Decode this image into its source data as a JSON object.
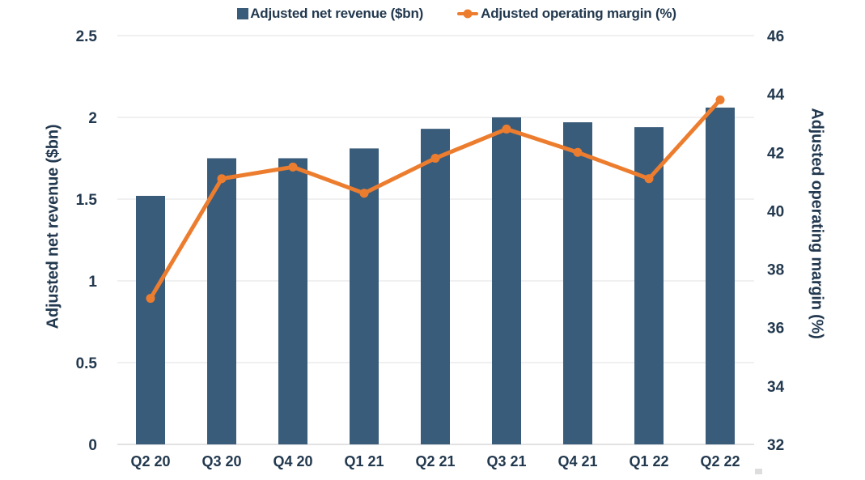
{
  "chart_data": {
    "type": "combo-bar-line",
    "title": "",
    "legend_position": "top-center",
    "grid": "horizontal gridlines at left-axis ticks",
    "categories": [
      "Q2 20",
      "Q3 20",
      "Q4 20",
      "Q1 21",
      "Q2 21",
      "Q3 21",
      "Q4 21",
      "Q1 22",
      "Q2 22"
    ],
    "series": [
      {
        "name": "Adjusted net revenue ($bn)",
        "type": "bar",
        "axis": "left",
        "color": "#3A5C7B",
        "values": [
          1.52,
          1.75,
          1.75,
          1.81,
          1.93,
          2.0,
          1.97,
          1.94,
          2.06
        ]
      },
      {
        "name": "Adjusted operating margin (%)",
        "type": "line",
        "axis": "right",
        "color": "#ED7D2E",
        "values": [
          37.0,
          41.1,
          41.5,
          40.6,
          41.8,
          42.8,
          42.0,
          41.1,
          43.8
        ]
      }
    ],
    "y_left": {
      "title": "Adjusted net revenue ($bn)",
      "min": 0,
      "max": 2.5,
      "ticks": [
        2.5,
        2,
        1.5,
        1,
        0.5,
        0
      ],
      "tick_labels": [
        "2.5",
        "2",
        "1.5",
        "1",
        "0.5",
        "0"
      ]
    },
    "y_right": {
      "title": "Adjusted operating margin (%)",
      "min": 32,
      "max": 46,
      "ticks": [
        46,
        44,
        42,
        40,
        38,
        36,
        34,
        32
      ],
      "tick_labels": [
        "46",
        "44",
        "42",
        "40",
        "38",
        "36",
        "34",
        "32"
      ]
    }
  },
  "colors": {
    "bar": "#3A5C7B",
    "line": "#ED7D2E",
    "text": "#22384E",
    "grid": "#ECECEC",
    "baseline": "#D9D9D9",
    "background": "#FFFFFF"
  }
}
